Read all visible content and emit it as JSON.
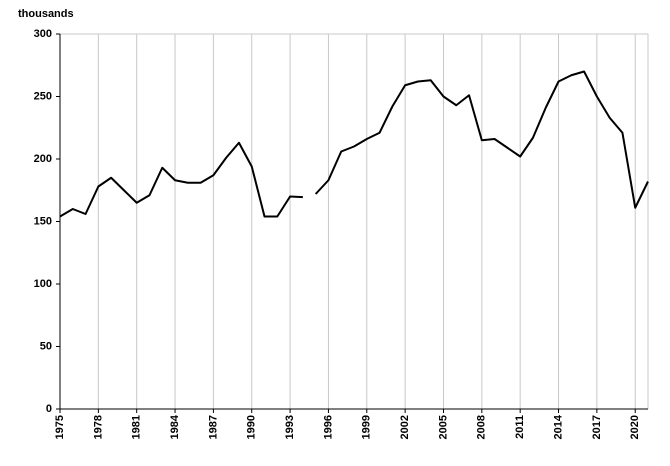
{
  "chart_data": {
    "type": "line",
    "y_label": "thousands",
    "color": "#000000",
    "grid": "vertical",
    "xlim": [
      1975,
      2021
    ],
    "xticks": [
      1975,
      1978,
      1981,
      1984,
      1987,
      1990,
      1993,
      1996,
      1999,
      2002,
      2005,
      2008,
      2011,
      2014,
      2017,
      2020
    ],
    "ylim": [
      0,
      300
    ],
    "yticks": [
      0,
      50,
      100,
      150,
      200,
      250,
      300
    ],
    "series": [
      {
        "x": [
          1975,
          1976,
          1977,
          1978,
          1979,
          1980,
          1981,
          1982,
          1983,
          1984,
          1985,
          1986,
          1987,
          1988,
          1989,
          1990,
          1991,
          1992,
          1993,
          1994
        ],
        "values": [
          154,
          160,
          156,
          178,
          185,
          175,
          165,
          171,
          193,
          183,
          181,
          181,
          187,
          201,
          213,
          194,
          154,
          154,
          170,
          169.5
        ]
      },
      {
        "x": [
          1995,
          1996,
          1997,
          1998,
          1999,
          2000,
          2001,
          2002,
          2003,
          2004,
          2005,
          2006,
          2007,
          2008,
          2009,
          2010,
          2011,
          2012,
          2013,
          2014,
          2015,
          2016,
          2017,
          2018,
          2019,
          2020,
          2021
        ],
        "values": [
          172,
          183,
          206,
          210,
          216,
          221,
          242,
          259,
          262,
          263,
          250,
          243,
          251,
          215,
          216,
          209,
          202,
          217,
          241,
          262,
          267,
          270,
          250,
          233,
          221,
          161,
          182
        ]
      }
    ]
  }
}
